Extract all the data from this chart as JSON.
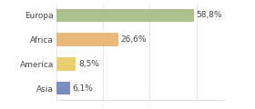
{
  "categories": [
    "Europa",
    "Africa",
    "America",
    "Asia"
  ],
  "values": [
    58.8,
    26.6,
    8.5,
    6.1
  ],
  "labels": [
    "58,8%",
    "26,6%",
    "8,5%",
    "6,1%"
  ],
  "bar_colors": [
    "#adbf8e",
    "#e8b87a",
    "#e8d070",
    "#7a8fc0"
  ],
  "xlim": [
    0,
    72
  ],
  "background_color": "#ffffff",
  "label_fontsize": 6.5,
  "tick_fontsize": 6.5,
  "bar_height": 0.55
}
